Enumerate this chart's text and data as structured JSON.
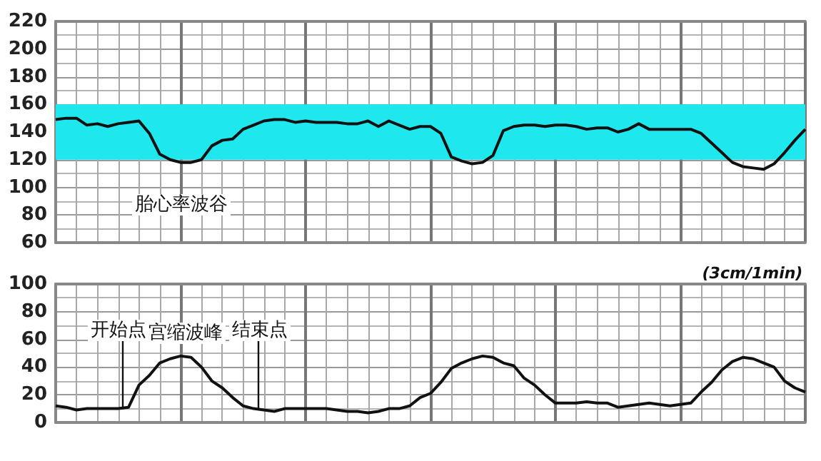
{
  "chart_data": [
    {
      "type": "line",
      "categories": [
        null,
        null,
        null,
        null,
        null,
        null,
        null,
        null,
        null,
        null,
        null,
        null,
        null,
        null,
        null,
        null,
        null,
        null,
        null,
        null,
        null,
        null,
        null,
        null,
        null,
        null,
        null,
        null,
        null,
        null,
        null,
        null,
        null,
        null,
        null,
        null,
        null,
        null,
        null,
        null,
        null,
        null,
        null,
        null,
        null,
        null,
        null,
        null,
        null,
        null,
        null,
        null,
        null,
        null,
        null,
        null,
        null,
        null,
        null,
        null,
        null,
        null,
        null,
        null,
        null,
        null,
        null,
        null,
        null,
        null,
        null,
        null,
        null
      ],
      "series": [
        {
          "color": "#111111",
          "values": [
            149,
            150,
            150,
            145,
            146,
            144,
            146,
            147,
            148,
            139,
            124,
            120,
            118,
            118,
            120,
            130,
            134,
            135,
            142,
            145,
            148,
            149,
            149,
            147,
            148,
            147,
            147,
            147,
            146,
            146,
            148,
            144,
            148,
            145,
            142,
            144,
            144,
            139,
            122,
            119,
            117,
            118,
            123,
            141,
            144,
            145,
            145,
            144,
            145,
            145,
            144,
            142,
            143,
            143,
            140,
            142,
            146,
            142,
            142,
            142,
            142,
            142,
            139,
            132,
            125,
            118,
            115,
            114,
            113,
            117,
            125,
            134,
            142
          ]
        }
      ],
      "ylim": [
        60,
        220
      ],
      "yticks": [
        60,
        80,
        100,
        120,
        140,
        160,
        180,
        200,
        220
      ],
      "grid": true,
      "marker": "none",
      "bands": [
        {
          "axis": "y",
          "from": 120,
          "to": 160,
          "color": "#1ee8ee"
        }
      ],
      "annotations": [
        "胎心率波谷"
      ]
    },
    {
      "type": "line",
      "categories": [
        null,
        null,
        null,
        null,
        null,
        null,
        null,
        null,
        null,
        null,
        null,
        null,
        null,
        null,
        null,
        null,
        null,
        null,
        null,
        null,
        null,
        null,
        null,
        null,
        null,
        null,
        null,
        null,
        null,
        null,
        null,
        null,
        null,
        null,
        null,
        null,
        null,
        null,
        null,
        null,
        null,
        null,
        null,
        null,
        null,
        null,
        null,
        null,
        null,
        null,
        null,
        null,
        null,
        null,
        null,
        null,
        null,
        null,
        null,
        null,
        null,
        null,
        null,
        null,
        null,
        null,
        null,
        null,
        null,
        null,
        null,
        null,
        null
      ],
      "series": [
        {
          "color": "#111111",
          "values": [
            12,
            11,
            9,
            10,
            10,
            10,
            10,
            11,
            27,
            34,
            43,
            46,
            48,
            47,
            40,
            30,
            25,
            18,
            12,
            10,
            9,
            8,
            10,
            10,
            10,
            10,
            10,
            9,
            8,
            8,
            7,
            8,
            10,
            10,
            12,
            18,
            21,
            29,
            39,
            43,
            46,
            48,
            47,
            43,
            41,
            32,
            27,
            20,
            14,
            14,
            14,
            15,
            14,
            14,
            11,
            12,
            13,
            14,
            13,
            12,
            13,
            14,
            22,
            29,
            38,
            44,
            47,
            46,
            43,
            40,
            30,
            25,
            22
          ]
        }
      ],
      "ylim": [
        0,
        100
      ],
      "yticks": [
        0,
        20,
        40,
        60,
        80,
        100
      ],
      "grid": true,
      "marker": "none",
      "annotations": [
        "开始点",
        "宫缩波峰",
        "结束点",
        "(3cm/1min)"
      ]
    }
  ]
}
